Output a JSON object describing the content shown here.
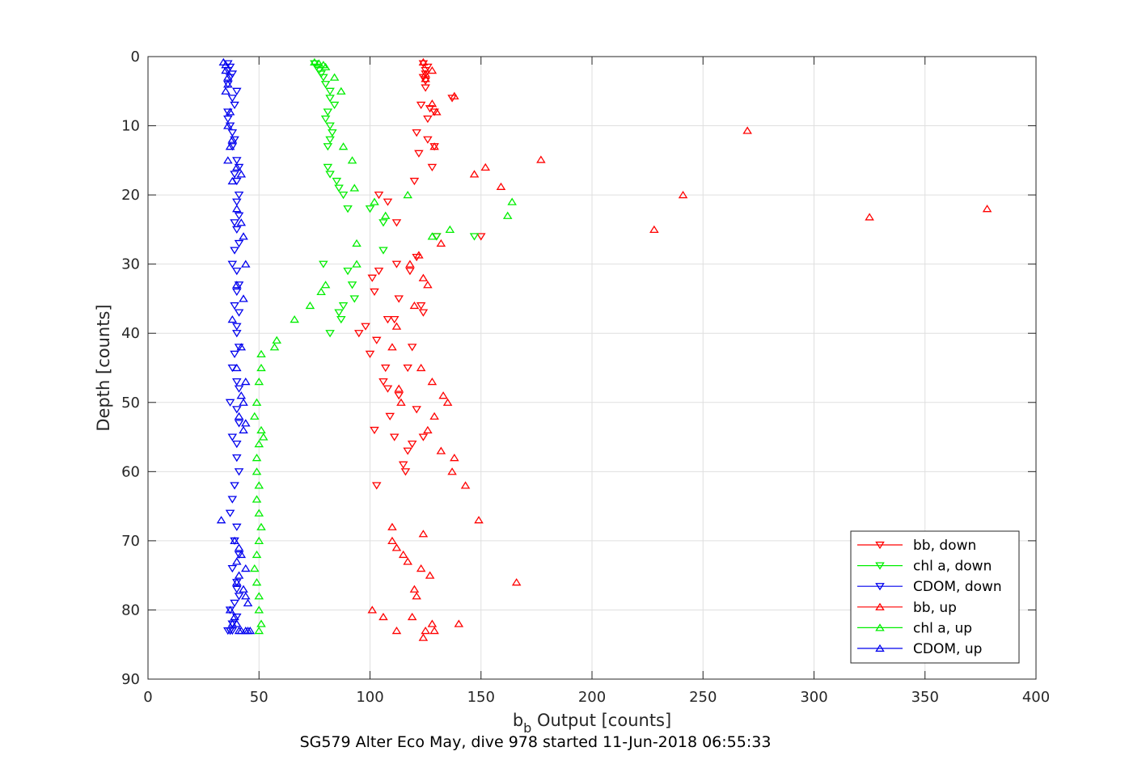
{
  "chart_data": {
    "type": "scatter",
    "title": "SG579 Alter Eco May, dive 978 started 11-Jun-2018 06:55:33",
    "xlabel_main": "b",
    "xlabel_sub": "b",
    "xlabel_rest": " Output [counts]",
    "ylabel": "Depth [counts]",
    "xlim": [
      0,
      400
    ],
    "ylim": [
      0,
      90
    ],
    "y_reversed": true,
    "x_ticks": [
      0,
      50,
      100,
      150,
      200,
      250,
      300,
      350,
      400
    ],
    "y_ticks": [
      0,
      10,
      20,
      30,
      40,
      50,
      60,
      70,
      80,
      90
    ],
    "grid": true,
    "legend_position": "lower-right",
    "series": [
      {
        "name": "bb, down",
        "color": "#ff0000",
        "marker": "triangle-down",
        "x": [
          124,
          126,
          125,
          125,
          124,
          125,
          125,
          137,
          123,
          127,
          129,
          126,
          121,
          126,
          129,
          122,
          128,
          120,
          104,
          108,
          112,
          130,
          150,
          121,
          112,
          104,
          118,
          101,
          102,
          113,
          123,
          124,
          111,
          108,
          98,
          95,
          103,
          119,
          100,
          107,
          117,
          106,
          108,
          113,
          121,
          109,
          102,
          111,
          124,
          119,
          117,
          115,
          116,
          103
        ],
        "y": [
          1,
          1.5,
          2,
          2.5,
          3,
          3.5,
          4.5,
          6,
          7,
          7.5,
          8,
          9,
          11,
          12,
          13,
          14,
          16,
          18,
          20,
          21,
          24,
          26,
          26,
          29,
          30,
          31,
          31,
          32,
          34,
          35,
          36,
          37,
          38,
          38,
          39,
          40,
          41,
          42,
          43,
          45,
          45,
          47,
          48,
          49,
          51,
          52,
          54,
          55,
          55,
          56,
          57,
          59,
          60,
          62
        ]
      },
      {
        "name": "chl a, down",
        "color": "#00ee00",
        "marker": "triangle-down",
        "x": [
          75,
          76,
          77,
          78,
          79,
          80,
          82,
          82,
          84,
          81,
          80,
          82,
          83,
          82,
          81,
          81,
          82,
          85,
          86,
          88,
          90,
          100,
          106,
          130,
          147,
          106,
          79,
          90,
          92,
          93,
          88,
          86,
          87,
          82
        ],
        "y": [
          1,
          1.5,
          2,
          2.5,
          3,
          4,
          5,
          6,
          7,
          8,
          9,
          10,
          11,
          12,
          13,
          16,
          17,
          18,
          19,
          20,
          22,
          22,
          24,
          26,
          26,
          28,
          30,
          31,
          33,
          35,
          36,
          37,
          38,
          40
        ]
      },
      {
        "name": "CDOM, down",
        "color": "#0000ee",
        "marker": "triangle-down",
        "x": [
          36,
          37,
          36,
          38,
          37,
          36,
          40,
          38,
          39,
          36,
          36,
          37,
          38,
          39,
          38,
          40,
          41,
          39,
          40,
          41,
          40,
          41,
          39,
          40,
          41,
          39,
          38,
          40,
          41,
          40,
          39,
          41,
          40,
          40,
          41,
          39,
          38,
          40,
          41,
          37,
          40,
          41,
          38,
          40,
          40,
          41,
          39,
          38,
          37,
          40,
          39,
          41,
          38,
          40,
          40,
          41,
          39,
          37,
          40,
          38,
          38,
          36,
          37,
          37,
          38
        ],
        "y": [
          1,
          1.5,
          2,
          2.5,
          3,
          4,
          5,
          6,
          7,
          8,
          9,
          10,
          11,
          12,
          13,
          15,
          16,
          17,
          18,
          20,
          21,
          23,
          24,
          25,
          27,
          28,
          30,
          31,
          33,
          34,
          36,
          37,
          39,
          40,
          42,
          43,
          45,
          47,
          48,
          50,
          51,
          53,
          55,
          56,
          58,
          60,
          62,
          64,
          66,
          68,
          70,
          72,
          74,
          76,
          77,
          78,
          79,
          80,
          81,
          82,
          82,
          83,
          83,
          83,
          83
        ]
      },
      {
        "name": "bb, up",
        "color": "#ff0000",
        "marker": "triangle-up",
        "x": [
          124,
          128,
          125,
          125,
          138,
          128,
          130,
          270,
          129,
          177,
          152,
          147,
          159,
          241,
          378,
          325,
          228,
          132,
          122,
          118,
          124,
          126,
          120,
          112,
          110,
          123,
          128,
          113,
          133,
          114,
          135,
          129,
          126,
          132,
          138,
          137,
          143,
          149,
          110,
          124,
          110,
          112,
          115,
          117,
          123,
          127,
          166,
          120,
          121,
          101,
          106,
          119,
          128,
          140,
          125,
          129,
          112,
          124
        ],
        "y": [
          0.8,
          2,
          2.5,
          3.2,
          5.7,
          6.8,
          8,
          10.7,
          13,
          14.9,
          16,
          17,
          18.8,
          20,
          22,
          23.2,
          25,
          27,
          28.7,
          30,
          32,
          33,
          36,
          39,
          42,
          45,
          47,
          48,
          49,
          50,
          50,
          52,
          54,
          57,
          58,
          60,
          62,
          67,
          68,
          69,
          70,
          71,
          72,
          73,
          74,
          75,
          76,
          77,
          78,
          80,
          81,
          81,
          82,
          82,
          83,
          83,
          83,
          84
        ]
      },
      {
        "name": "chl a, up",
        "color": "#00ee00",
        "marker": "triangle-up",
        "x": [
          75,
          77,
          79,
          80,
          84,
          87,
          88,
          92,
          93,
          102,
          107,
          117,
          164,
          162,
          136,
          128,
          94,
          94,
          80,
          78,
          73,
          66,
          58,
          57,
          51,
          51,
          50,
          49,
          48,
          51,
          52,
          50,
          49,
          49,
          50,
          49,
          50,
          51,
          50,
          49,
          48,
          49,
          50,
          50,
          51,
          50
        ],
        "y": [
          0.8,
          1,
          1.2,
          1.5,
          3,
          5,
          13,
          15,
          19,
          21,
          23,
          20,
          21,
          23,
          25,
          26,
          27,
          30,
          33,
          34,
          36,
          38,
          41,
          42,
          43,
          45,
          47,
          50,
          52,
          54,
          55,
          56,
          58,
          60,
          62,
          64,
          66,
          68,
          70,
          72,
          74,
          76,
          78,
          80,
          82,
          83
        ]
      },
      {
        "name": "CDOM, up",
        "color": "#0000ee",
        "marker": "triangle-up",
        "x": [
          34,
          35,
          35,
          36,
          36,
          35,
          37,
          36,
          38,
          37,
          36,
          40,
          42,
          38,
          40,
          42,
          43,
          44,
          40,
          43,
          38,
          42,
          40,
          44,
          42,
          43,
          41,
          44,
          43,
          33,
          39,
          41,
          42,
          40,
          44,
          41,
          40,
          43,
          44,
          45,
          37,
          39,
          38,
          40,
          42,
          41,
          45,
          44,
          46
        ],
        "y": [
          0.8,
          1.2,
          2,
          3,
          4,
          5,
          8,
          10,
          12,
          13,
          15,
          16,
          17,
          18,
          22,
          24,
          26,
          30,
          33,
          35,
          38,
          42,
          45,
          47,
          49,
          50,
          52,
          53,
          54,
          67,
          70,
          71,
          72,
          73,
          74,
          75,
          76,
          77,
          78,
          79,
          80,
          81,
          82,
          82,
          83,
          83,
          83,
          83,
          83
        ]
      }
    ]
  }
}
